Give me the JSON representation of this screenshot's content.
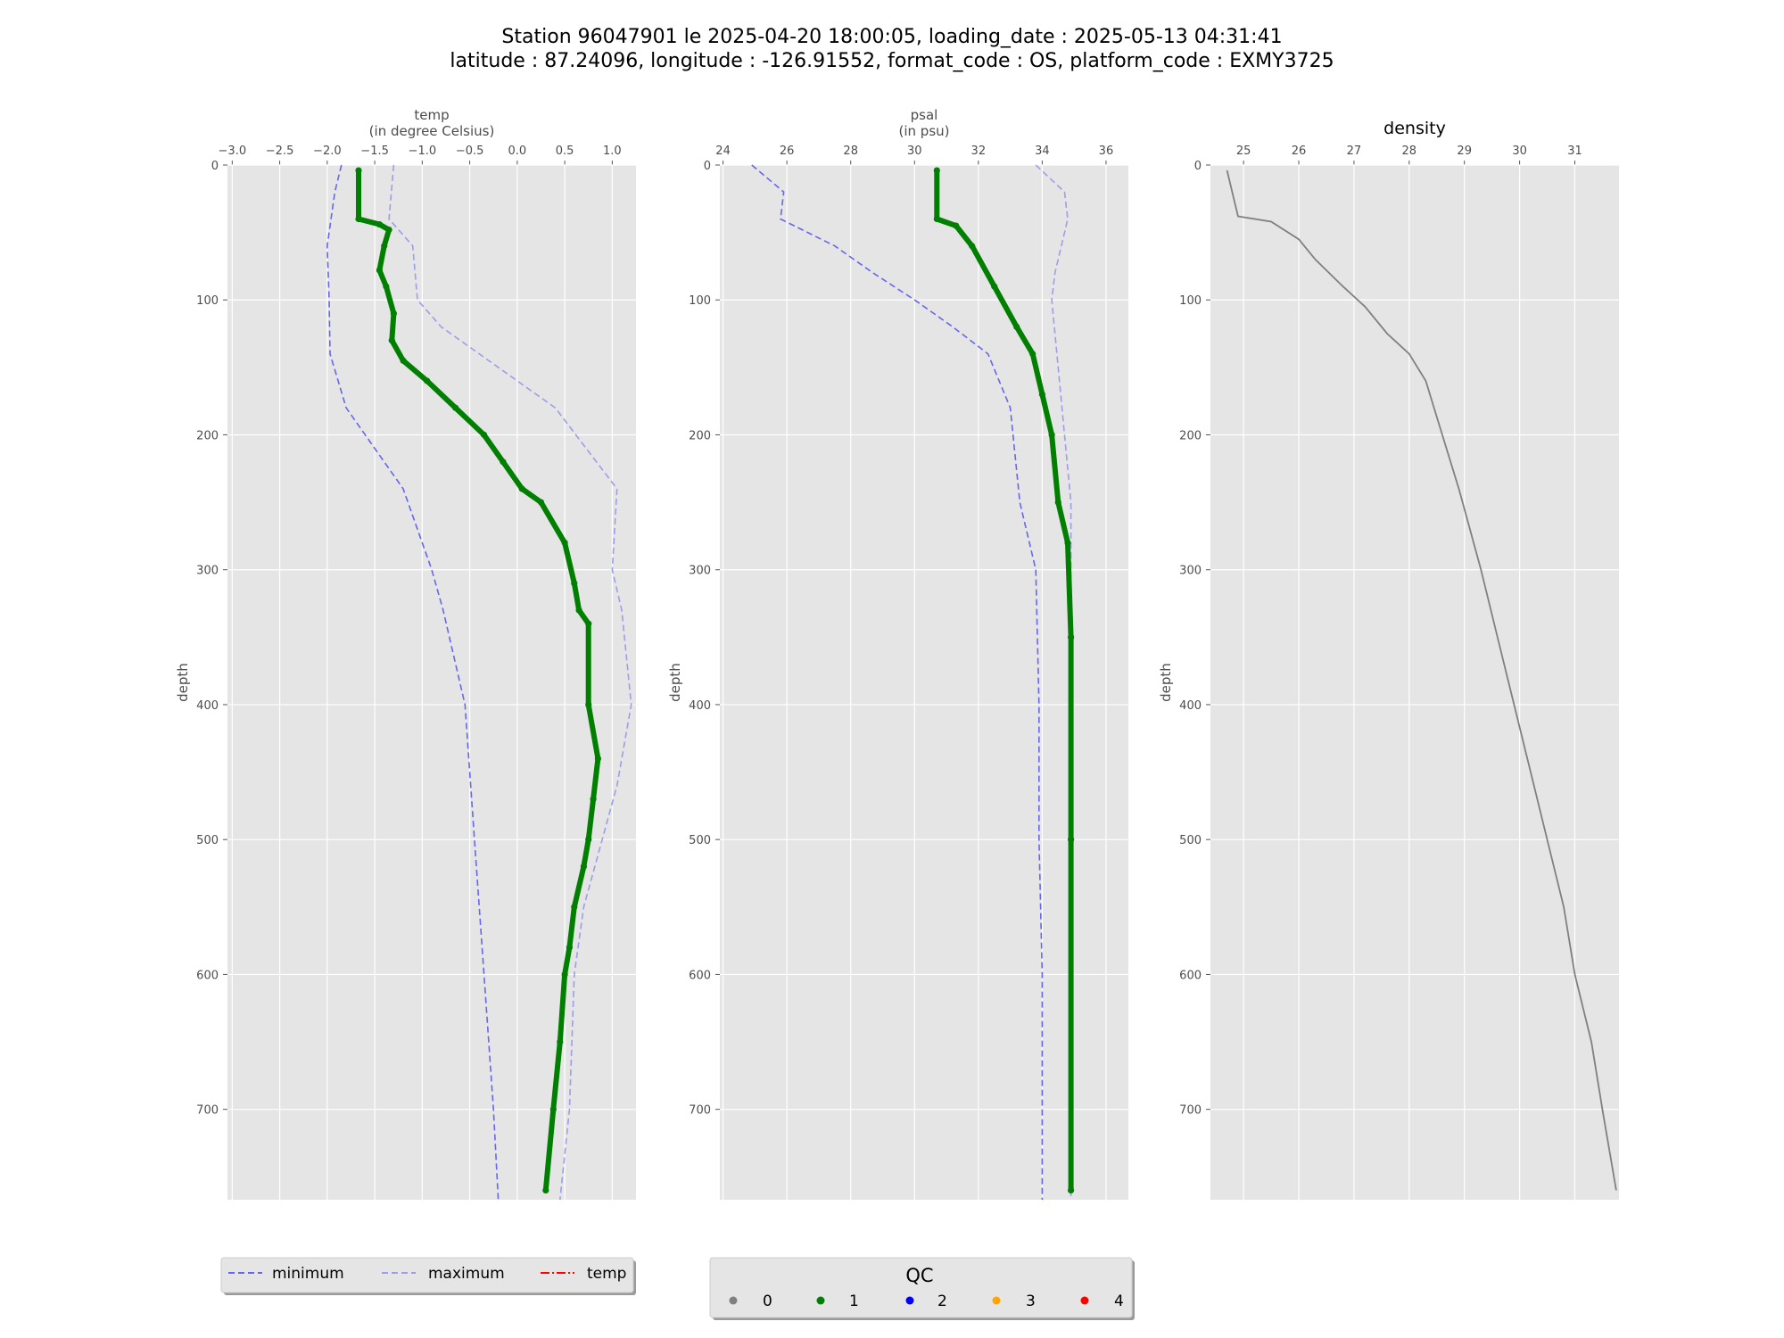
{
  "figure": {
    "title_line1": "Station 96047901 le 2025-04-20 18:00:05, loading_date : 2025-05-13 04:31:41",
    "title_line2": "latitude : 87.24096, longitude : -126.91552, format_code : OS, platform_code : EXMY3725"
  },
  "colors": {
    "panel_bg": "#e5e5e5",
    "grid": "#ffffff",
    "minimum": "#6666ee",
    "maximum": "#9d9deb",
    "qc1": "#007f00",
    "density": "#808080",
    "legend_bg": "#e5e5e5"
  },
  "legend_lines": {
    "items": [
      {
        "label": "minimum",
        "color": "#6666ee",
        "style": "dashed"
      },
      {
        "label": "maximum",
        "color": "#9d9deb",
        "style": "dashed"
      },
      {
        "label": "temp",
        "color": "#ff0000",
        "style": "dashdot"
      }
    ]
  },
  "legend_qc": {
    "title": "QC",
    "items": [
      {
        "label": "0",
        "color": "#808080"
      },
      {
        "label": "1",
        "color": "#007f00"
      },
      {
        "label": "2",
        "color": "#0000ff"
      },
      {
        "label": "3",
        "color": "#ffa500"
      },
      {
        "label": "4",
        "color": "#ff0000"
      }
    ]
  },
  "chart_data": [
    {
      "type": "line",
      "title": "",
      "xlabel": "temp\n(in degree Celsius)",
      "ylabel": "depth",
      "xlim": [
        -3.05,
        1.25
      ],
      "ylim": [
        767,
        0
      ],
      "xticks": [
        -3.0,
        -2.5,
        -2.0,
        -1.5,
        -1.0,
        -0.5,
        0.0,
        0.5,
        1.0
      ],
      "xtick_labels": [
        "−3.0",
        "−2.5",
        "−2.0",
        "−1.5",
        "−1.0",
        "−0.5",
        "0.0",
        "0.5",
        "1.0"
      ],
      "yticks": [
        0,
        100,
        200,
        300,
        400,
        500,
        600,
        700
      ],
      "x_axis_position": "top",
      "y_inverted": true,
      "grid": true,
      "series": [
        {
          "name": "minimum",
          "style": "dashed",
          "color": "#6666ee",
          "points": [
            [
              -1.85,
              0
            ],
            [
              -1.92,
              20
            ],
            [
              -2.0,
              60
            ],
            [
              -1.98,
              100
            ],
            [
              -1.97,
              140
            ],
            [
              -1.8,
              180
            ],
            [
              -1.6,
              200
            ],
            [
              -1.2,
              240
            ],
            [
              -0.9,
              300
            ],
            [
              -0.78,
              330
            ],
            [
              -0.55,
              400
            ],
            [
              -0.45,
              500
            ],
            [
              -0.35,
              600
            ],
            [
              -0.25,
              700
            ],
            [
              -0.2,
              767
            ]
          ]
        },
        {
          "name": "maximum",
          "style": "dashed",
          "color": "#9d9deb",
          "points": [
            [
              -1.3,
              0
            ],
            [
              -1.35,
              40
            ],
            [
              -1.1,
              60
            ],
            [
              -1.05,
              100
            ],
            [
              -0.8,
              120
            ],
            [
              0.0,
              160
            ],
            [
              0.4,
              180
            ],
            [
              1.05,
              240
            ],
            [
              1.0,
              300
            ],
            [
              1.1,
              330
            ],
            [
              1.2,
              400
            ],
            [
              1.05,
              460
            ],
            [
              0.7,
              550
            ],
            [
              0.6,
              600
            ],
            [
              0.55,
              700
            ],
            [
              0.45,
              767
            ]
          ]
        },
        {
          "name": "qc1",
          "style": "thick-dots",
          "color": "#007f00",
          "points": [
            [
              -1.67,
              4
            ],
            [
              -1.67,
              40
            ],
            [
              -1.45,
              44
            ],
            [
              -1.35,
              48
            ],
            [
              -1.4,
              60
            ],
            [
              -1.45,
              78
            ],
            [
              -1.38,
              90
            ],
            [
              -1.3,
              110
            ],
            [
              -1.32,
              130
            ],
            [
              -1.2,
              145
            ],
            [
              -0.95,
              160
            ],
            [
              -0.65,
              180
            ],
            [
              -0.35,
              200
            ],
            [
              -0.15,
              220
            ],
            [
              0.05,
              240
            ],
            [
              0.25,
              250
            ],
            [
              0.5,
              280
            ],
            [
              0.6,
              310
            ],
            [
              0.65,
              330
            ],
            [
              0.75,
              340
            ],
            [
              0.75,
              400
            ],
            [
              0.85,
              440
            ],
            [
              0.8,
              470
            ],
            [
              0.75,
              500
            ],
            [
              0.7,
              520
            ],
            [
              0.6,
              550
            ],
            [
              0.55,
              580
            ],
            [
              0.5,
              600
            ],
            [
              0.45,
              650
            ],
            [
              0.38,
              700
            ],
            [
              0.3,
              760
            ]
          ]
        }
      ]
    },
    {
      "type": "line",
      "title": "",
      "xlabel": "psal\n(in psu)",
      "ylabel": "depth",
      "xlim": [
        23.9,
        36.7
      ],
      "ylim": [
        767,
        0
      ],
      "xticks": [
        24,
        26,
        28,
        30,
        32,
        34,
        36
      ],
      "xtick_labels": [
        "24",
        "26",
        "28",
        "30",
        "32",
        "34",
        "36"
      ],
      "yticks": [
        0,
        100,
        200,
        300,
        400,
        500,
        600,
        700
      ],
      "x_axis_position": "top",
      "y_inverted": true,
      "grid": true,
      "series": [
        {
          "name": "minimum",
          "style": "dashed",
          "color": "#6666ee",
          "points": [
            [
              24.9,
              0
            ],
            [
              25.9,
              20
            ],
            [
              25.8,
              40
            ],
            [
              27.5,
              60
            ],
            [
              28.7,
              80
            ],
            [
              30.0,
              100
            ],
            [
              31.2,
              120
            ],
            [
              32.3,
              140
            ],
            [
              33.0,
              180
            ],
            [
              33.3,
              250
            ],
            [
              33.8,
              300
            ],
            [
              33.9,
              400
            ],
            [
              33.9,
              500
            ],
            [
              34.0,
              600
            ],
            [
              34.0,
              700
            ],
            [
              34.0,
              767
            ]
          ]
        },
        {
          "name": "maximum",
          "style": "dashed",
          "color": "#9d9deb",
          "points": [
            [
              33.8,
              0
            ],
            [
              34.7,
              20
            ],
            [
              34.8,
              40
            ],
            [
              34.4,
              80
            ],
            [
              34.3,
              100
            ],
            [
              34.5,
              150
            ],
            [
              34.7,
              200
            ],
            [
              34.9,
              250
            ],
            [
              34.9,
              400
            ],
            [
              34.9,
              700
            ],
            [
              34.9,
              767
            ]
          ]
        },
        {
          "name": "qc1",
          "style": "thick-dots",
          "color": "#007f00",
          "points": [
            [
              30.7,
              4
            ],
            [
              30.7,
              40
            ],
            [
              31.3,
              45
            ],
            [
              31.8,
              60
            ],
            [
              32.5,
              90
            ],
            [
              33.2,
              120
            ],
            [
              33.7,
              140
            ],
            [
              34.0,
              170
            ],
            [
              34.3,
              200
            ],
            [
              34.5,
              250
            ],
            [
              34.8,
              280
            ],
            [
              34.9,
              350
            ],
            [
              34.9,
              500
            ],
            [
              34.9,
              760
            ]
          ]
        }
      ]
    },
    {
      "type": "line",
      "title": "density",
      "xlabel": "",
      "ylabel": "depth",
      "xlim": [
        24.4,
        31.8
      ],
      "ylim": [
        767,
        0
      ],
      "xticks": [
        25,
        26,
        27,
        28,
        29,
        30,
        31
      ],
      "xtick_labels": [
        "25",
        "26",
        "27",
        "28",
        "29",
        "30",
        "31"
      ],
      "yticks": [
        0,
        100,
        200,
        300,
        400,
        500,
        600,
        700
      ],
      "x_axis_position": "top",
      "y_inverted": true,
      "grid": true,
      "series": [
        {
          "name": "density",
          "style": "solid",
          "color": "#808080",
          "points": [
            [
              24.7,
              4
            ],
            [
              24.9,
              38
            ],
            [
              25.5,
              42
            ],
            [
              26.0,
              55
            ],
            [
              26.3,
              70
            ],
            [
              26.8,
              90
            ],
            [
              27.2,
              105
            ],
            [
              27.6,
              125
            ],
            [
              28.0,
              140
            ],
            [
              28.3,
              160
            ],
            [
              28.6,
              200
            ],
            [
              28.9,
              240
            ],
            [
              29.1,
              270
            ],
            [
              29.3,
              300
            ],
            [
              29.6,
              350
            ],
            [
              29.9,
              400
            ],
            [
              30.2,
              450
            ],
            [
              30.5,
              500
            ],
            [
              30.8,
              550
            ],
            [
              31.0,
              600
            ],
            [
              31.3,
              650
            ],
            [
              31.5,
              700
            ],
            [
              31.75,
              760
            ]
          ]
        }
      ]
    }
  ]
}
